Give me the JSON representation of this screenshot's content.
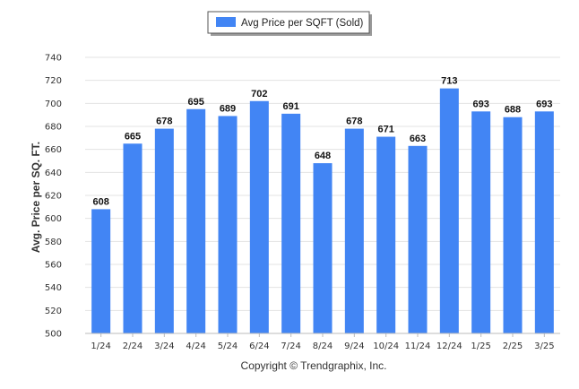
{
  "chart_data": {
    "type": "bar",
    "categories": [
      "1/24",
      "2/24",
      "3/24",
      "4/24",
      "5/24",
      "6/24",
      "7/24",
      "8/24",
      "9/24",
      "10/24",
      "11/24",
      "12/24",
      "1/25",
      "2/25",
      "3/25"
    ],
    "series": [
      {
        "name": "Avg Price per SQFT (Sold)",
        "values": [
          608,
          665,
          678,
          695,
          689,
          702,
          691,
          648,
          678,
          671,
          663,
          713,
          693,
          688,
          693
        ]
      }
    ],
    "ylabel": "Avg. Price per SQ. FT.",
    "xlabel": "",
    "ylim": [
      500,
      740
    ],
    "yticks": [
      500,
      520,
      540,
      560,
      580,
      600,
      620,
      640,
      660,
      680,
      700,
      720,
      740
    ],
    "grid": true,
    "legend_position": "top",
    "bar_color": "#4285f4"
  },
  "footer": {
    "copyright": "Copyright © Trendgraphix, Inc."
  }
}
